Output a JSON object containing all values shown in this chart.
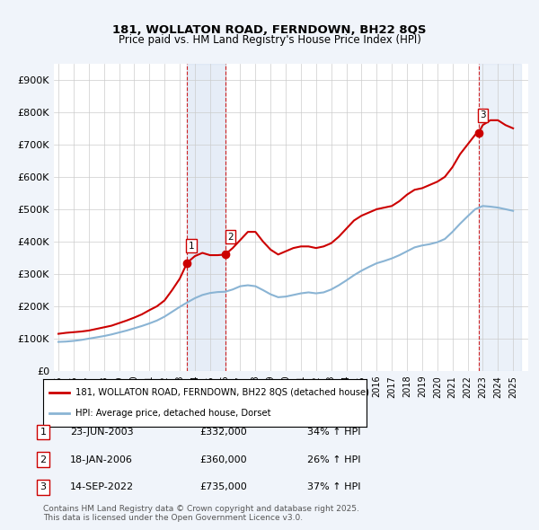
{
  "title1": "181, WOLLATON ROAD, FERNDOWN, BH22 8QS",
  "title2": "Price paid vs. HM Land Registry's House Price Index (HPI)",
  "ylabel_ticks": [
    "£0",
    "£100K",
    "£200K",
    "£300K",
    "£400K",
    "£500K",
    "£600K",
    "£700K",
    "£800K",
    "£900K"
  ],
  "ytick_vals": [
    0,
    100000,
    200000,
    300000,
    400000,
    500000,
    600000,
    700000,
    800000,
    900000
  ],
  "ylim": [
    0,
    950000
  ],
  "xlim_start": 1995.0,
  "xlim_end": 2026.0,
  "background_color": "#f0f4fa",
  "plot_bg_color": "#ffffff",
  "red_line_color": "#cc0000",
  "blue_line_color": "#8ab4d4",
  "grid_color": "#cccccc",
  "transaction_dates": [
    2003.47,
    2006.05,
    2022.71
  ],
  "transaction_prices": [
    332000,
    360000,
    735000
  ],
  "transaction_labels": [
    "1",
    "2",
    "3"
  ],
  "vline_color": "#cc0000",
  "shade_color": "#c8d8ef",
  "legend_line1": "181, WOLLATON ROAD, FERNDOWN, BH22 8QS (detached house)",
  "legend_line2": "HPI: Average price, detached house, Dorset",
  "table_rows": [
    [
      "1",
      "23-JUN-2003",
      "£332,000",
      "34% ↑ HPI"
    ],
    [
      "2",
      "18-JAN-2006",
      "£360,000",
      "26% ↑ HPI"
    ],
    [
      "3",
      "14-SEP-2022",
      "£735,000",
      "37% ↑ HPI"
    ]
  ],
  "footer_text": "Contains HM Land Registry data © Crown copyright and database right 2025.\nThis data is licensed under the Open Government Licence v3.0.",
  "red_x": [
    1995.0,
    1995.5,
    1996.0,
    1996.5,
    1997.0,
    1997.5,
    1998.0,
    1998.5,
    1999.0,
    1999.5,
    2000.0,
    2000.5,
    2001.0,
    2001.5,
    2002.0,
    2002.5,
    2003.0,
    2003.47,
    2003.5,
    2004.0,
    2004.5,
    2005.0,
    2005.5,
    2006.05,
    2006.0,
    2006.5,
    2007.0,
    2007.5,
    2008.0,
    2008.5,
    2009.0,
    2009.5,
    2010.0,
    2010.5,
    2011.0,
    2011.5,
    2012.0,
    2012.5,
    2013.0,
    2013.5,
    2014.0,
    2014.5,
    2015.0,
    2015.5,
    2016.0,
    2016.5,
    2017.0,
    2017.5,
    2018.0,
    2018.5,
    2019.0,
    2019.5,
    2020.0,
    2020.5,
    2021.0,
    2021.5,
    2022.0,
    2022.5,
    2022.71,
    2023.0,
    2023.5,
    2024.0,
    2024.5,
    2025.0
  ],
  "red_y": [
    115000,
    118000,
    120000,
    122000,
    125000,
    130000,
    135000,
    140000,
    148000,
    156000,
    165000,
    175000,
    188000,
    200000,
    218000,
    250000,
    285000,
    332000,
    335000,
    355000,
    365000,
    358000,
    358000,
    360000,
    360000,
    380000,
    405000,
    430000,
    430000,
    400000,
    375000,
    360000,
    370000,
    380000,
    385000,
    385000,
    380000,
    385000,
    395000,
    415000,
    440000,
    465000,
    480000,
    490000,
    500000,
    505000,
    510000,
    525000,
    545000,
    560000,
    565000,
    575000,
    585000,
    600000,
    630000,
    670000,
    700000,
    730000,
    735000,
    760000,
    775000,
    775000,
    760000,
    750000
  ],
  "blue_x": [
    1995.0,
    1995.5,
    1996.0,
    1996.5,
    1997.0,
    1997.5,
    1998.0,
    1998.5,
    1999.0,
    1999.5,
    2000.0,
    2000.5,
    2001.0,
    2001.5,
    2002.0,
    2002.5,
    2003.0,
    2003.5,
    2004.0,
    2004.5,
    2005.0,
    2005.5,
    2006.0,
    2006.5,
    2007.0,
    2007.5,
    2008.0,
    2008.5,
    2009.0,
    2009.5,
    2010.0,
    2010.5,
    2011.0,
    2011.5,
    2012.0,
    2012.5,
    2013.0,
    2013.5,
    2014.0,
    2014.5,
    2015.0,
    2015.5,
    2016.0,
    2016.5,
    2017.0,
    2017.5,
    2018.0,
    2018.5,
    2019.0,
    2019.5,
    2020.0,
    2020.5,
    2021.0,
    2021.5,
    2022.0,
    2022.5,
    2023.0,
    2023.5,
    2024.0,
    2024.5,
    2025.0
  ],
  "blue_y": [
    90000,
    91000,
    93000,
    96000,
    100000,
    104000,
    108000,
    113000,
    119000,
    125000,
    132000,
    139000,
    147000,
    156000,
    168000,
    183000,
    198000,
    212000,
    225000,
    235000,
    241000,
    244000,
    245000,
    252000,
    262000,
    265000,
    262000,
    250000,
    237000,
    228000,
    230000,
    235000,
    240000,
    243000,
    240000,
    243000,
    252000,
    265000,
    280000,
    296000,
    310000,
    322000,
    333000,
    340000,
    348000,
    358000,
    370000,
    382000,
    388000,
    392000,
    398000,
    408000,
    430000,
    455000,
    478000,
    500000,
    510000,
    508000,
    505000,
    500000,
    495000
  ]
}
